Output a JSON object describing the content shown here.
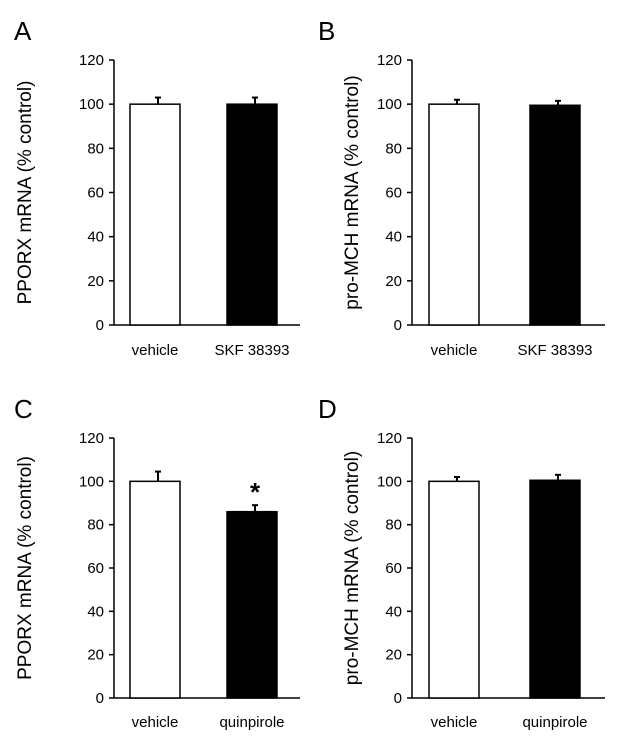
{
  "chart_data": [
    {
      "type": "bar",
      "panel": "A",
      "categories": [
        "vehicle",
        "SKF 38393"
      ],
      "values": [
        100,
        100
      ],
      "errors": [
        3,
        3
      ],
      "colors": [
        "#ffffff",
        "#000000"
      ],
      "ylabel": "PPORX mRNA (% control)",
      "ylim": [
        0,
        120
      ],
      "yticks": [
        "0",
        "20",
        "40",
        "60",
        "80",
        "100",
        "120"
      ],
      "annotations": [
        "",
        ""
      ]
    },
    {
      "type": "bar",
      "panel": "B",
      "categories": [
        "vehicle",
        "SKF 38393"
      ],
      "values": [
        100,
        99.5
      ],
      "errors": [
        2,
        2
      ],
      "colors": [
        "#ffffff",
        "#000000"
      ],
      "ylabel": "pro-MCH mRNA (% control)",
      "ylim": [
        0,
        120
      ],
      "yticks": [
        "0",
        "20",
        "40",
        "60",
        "80",
        "100",
        "120"
      ],
      "annotations": [
        "",
        ""
      ]
    },
    {
      "type": "bar",
      "panel": "C",
      "categories": [
        "vehicle",
        "quinpirole"
      ],
      "values": [
        100,
        86
      ],
      "errors": [
        4.5,
        3
      ],
      "colors": [
        "#ffffff",
        "#000000"
      ],
      "ylabel": "PPORX mRNA (% control)",
      "ylim": [
        0,
        120
      ],
      "yticks": [
        "0",
        "20",
        "40",
        "60",
        "80",
        "100",
        "120"
      ],
      "annotations": [
        "",
        "*"
      ]
    },
    {
      "type": "bar",
      "panel": "D",
      "categories": [
        "vehicle",
        "quinpirole"
      ],
      "values": [
        100,
        100.5
      ],
      "errors": [
        2,
        2.5
      ],
      "colors": [
        "#ffffff",
        "#000000"
      ],
      "ylabel": "pro-MCH mRNA (% control)",
      "ylim": [
        0,
        120
      ],
      "yticks": [
        "0",
        "20",
        "40",
        "60",
        "80",
        "100",
        "120"
      ],
      "annotations": [
        "",
        ""
      ]
    }
  ]
}
